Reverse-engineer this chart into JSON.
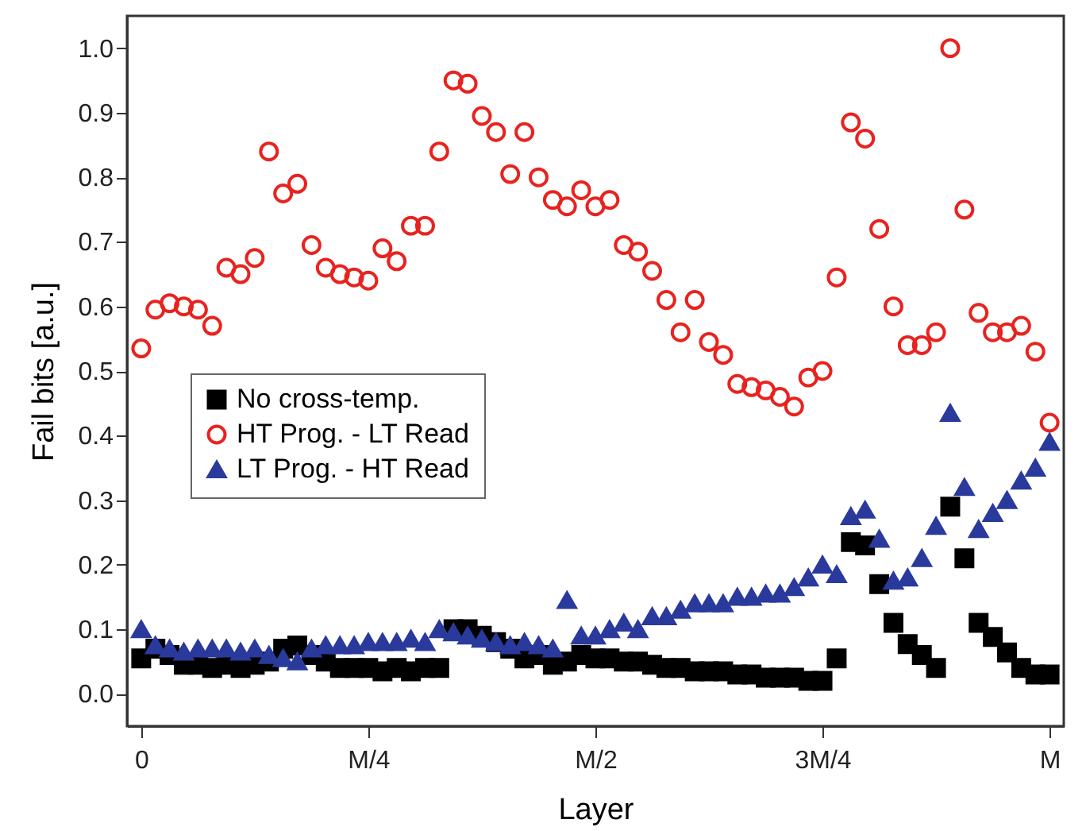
{
  "chart_data": {
    "type": "scatter",
    "xlabel": "Layer",
    "ylabel": "Fail bits [a.u.]",
    "ylim": [
      -0.05,
      1.05
    ],
    "categories": [
      "0",
      null,
      null,
      null,
      null,
      null,
      null,
      null,
      null,
      null,
      null,
      null,
      null,
      null,
      null,
      null,
      "M/4",
      null,
      null,
      null,
      null,
      null,
      null,
      null,
      null,
      null,
      null,
      null,
      null,
      null,
      null,
      null,
      "M/2",
      null,
      null,
      null,
      null,
      null,
      null,
      null,
      null,
      null,
      null,
      null,
      null,
      null,
      null,
      null,
      "3M/4",
      null,
      null,
      null,
      null,
      null,
      null,
      null,
      null,
      null,
      null,
      null,
      null,
      null,
      null,
      null,
      "M"
    ],
    "yticks": [
      {
        "value": 0,
        "label": "0.0"
      },
      {
        "value": 0.1,
        "label": "0.1"
      },
      {
        "value": 0.2,
        "label": "0.2"
      },
      {
        "value": 0.3,
        "label": "0.3"
      },
      {
        "value": 0.4,
        "label": "0.4"
      },
      {
        "value": 0.5,
        "label": "0.5"
      },
      {
        "value": 0.6,
        "label": "0.6"
      },
      {
        "value": 0.7,
        "label": "0.7"
      },
      {
        "value": 0.8,
        "label": "0.8"
      },
      {
        "value": 0.9,
        "label": "0.9"
      },
      {
        "value": 1,
        "label": "1.0"
      }
    ],
    "legend": "left",
    "series": [
      {
        "name": "No cross-temp.",
        "color": "#000000",
        "marker": "square",
        "values": [
          0.055,
          0.07,
          0.06,
          0.045,
          0.045,
          0.04,
          0.045,
          0.04,
          0.045,
          0.05,
          0.07,
          0.075,
          0.06,
          0.05,
          0.04,
          0.04,
          0.04,
          0.035,
          0.04,
          0.035,
          0.04,
          0.04,
          0.1,
          0.1,
          0.09,
          0.08,
          0.07,
          0.055,
          0.06,
          0.045,
          0.05,
          0.06,
          0.055,
          0.055,
          0.05,
          0.05,
          0.045,
          0.04,
          0.04,
          0.035,
          0.035,
          0.035,
          0.03,
          0.03,
          0.025,
          0.025,
          0.025,
          0.02,
          0.02,
          0.055,
          0.235,
          0.23,
          0.17,
          0.11,
          0.077,
          0.06,
          0.04,
          0.29,
          0.21,
          0.11,
          0.088,
          0.064,
          0.04,
          0.03,
          0.03
        ]
      },
      {
        "name": "HT Prog. - LT Read",
        "color": "#e8231f",
        "marker": "circle",
        "values": [
          0.535,
          0.595,
          0.605,
          0.6,
          0.595,
          0.57,
          0.66,
          0.65,
          0.675,
          0.84,
          0.775,
          0.79,
          0.695,
          0.66,
          0.65,
          0.645,
          0.64,
          0.69,
          0.67,
          0.725,
          0.725,
          0.84,
          0.95,
          0.945,
          0.895,
          0.87,
          0.805,
          0.87,
          0.8,
          0.765,
          0.755,
          0.78,
          0.755,
          0.765,
          0.695,
          0.685,
          0.655,
          0.61,
          0.56,
          0.61,
          0.545,
          0.525,
          0.48,
          0.475,
          0.47,
          0.46,
          0.445,
          0.49,
          0.5,
          0.645,
          0.885,
          0.86,
          0.72,
          0.6,
          0.54,
          0.54,
          0.56,
          1.0,
          0.75,
          0.59,
          0.56,
          0.56,
          0.57,
          0.53,
          0.42
        ]
      },
      {
        "name": "LT Prog. - HT Read",
        "color": "#2a3a9c",
        "marker": "triangle",
        "values": [
          0.1,
          0.075,
          0.07,
          0.065,
          0.07,
          0.07,
          0.07,
          0.065,
          0.07,
          0.06,
          0.055,
          0.05,
          0.07,
          0.075,
          0.075,
          0.075,
          0.08,
          0.08,
          0.08,
          0.085,
          0.08,
          0.1,
          0.095,
          0.09,
          0.085,
          0.08,
          0.075,
          0.08,
          0.075,
          0.07,
          0.145,
          0.09,
          0.09,
          0.1,
          0.11,
          0.1,
          0.12,
          0.12,
          0.13,
          0.14,
          0.14,
          0.14,
          0.15,
          0.15,
          0.155,
          0.155,
          0.165,
          0.18,
          0.2,
          0.185,
          0.275,
          0.285,
          0.24,
          0.175,
          0.18,
          0.21,
          0.26,
          0.435,
          0.32,
          0.255,
          0.28,
          0.3,
          0.33,
          0.35,
          0.39
        ]
      }
    ]
  }
}
